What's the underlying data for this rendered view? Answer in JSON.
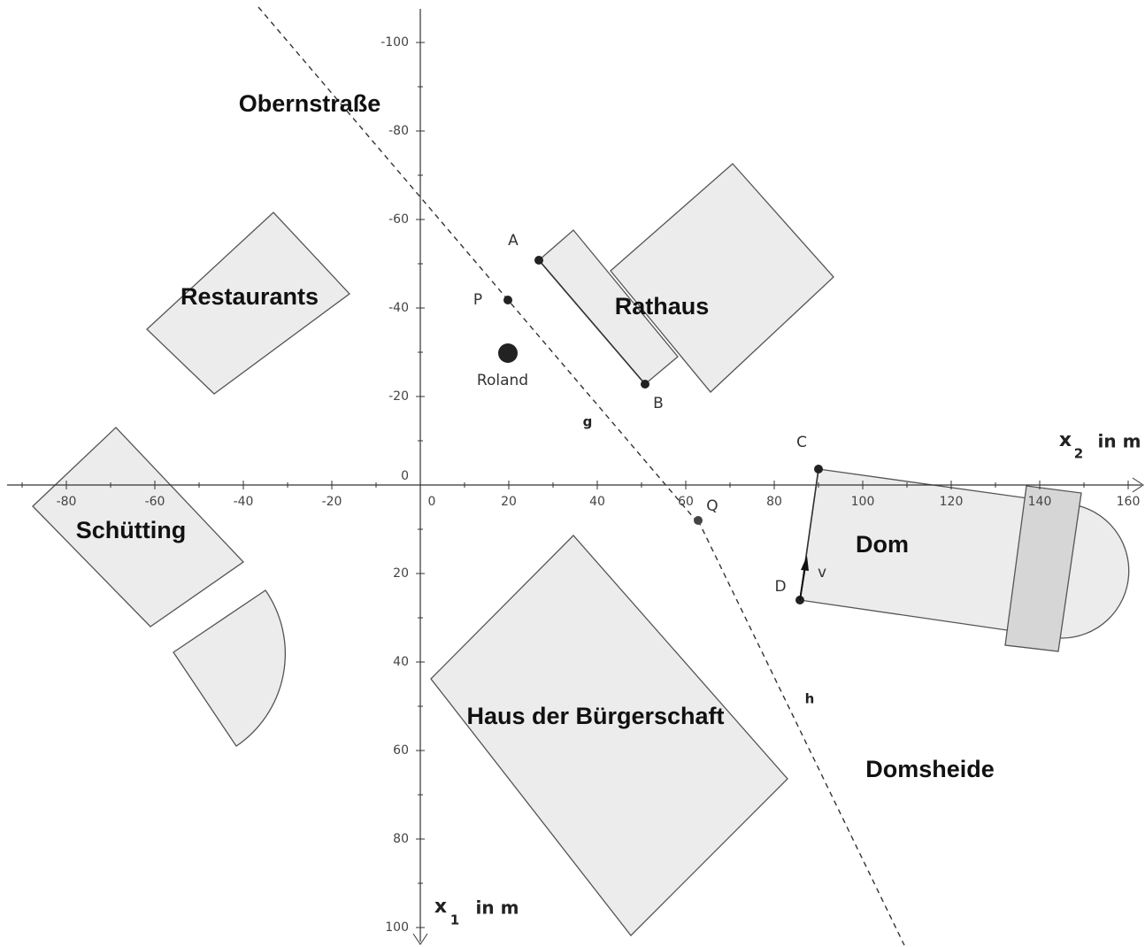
{
  "labels": {
    "obernstrasse": "Obernstraße",
    "restaurants": "Restaurants",
    "rathaus": "Rathaus",
    "schuetting": "Schütting",
    "buergerschaft": "Haus der Bürgerschaft",
    "dom": "Dom",
    "domsheide": "Domsheide"
  },
  "points": {
    "A": "A",
    "B": "B",
    "C": "C",
    "D": "D",
    "P": "P",
    "Q": "Q",
    "roland": "Roland"
  },
  "lines": {
    "g": "g",
    "h": "h",
    "v": "v"
  },
  "axes": {
    "x2": {
      "name": "x",
      "sub": "2",
      "unit": "in m",
      "ticks": [
        -80,
        -60,
        -40,
        -20,
        0,
        20,
        40,
        60,
        80,
        100,
        120,
        140,
        160
      ]
    },
    "x1": {
      "name": "x",
      "sub": "1",
      "unit": "in m",
      "ticks": [
        -100,
        -80,
        -60,
        -40,
        -20,
        0,
        20,
        40,
        60,
        80,
        100
      ]
    }
  }
}
